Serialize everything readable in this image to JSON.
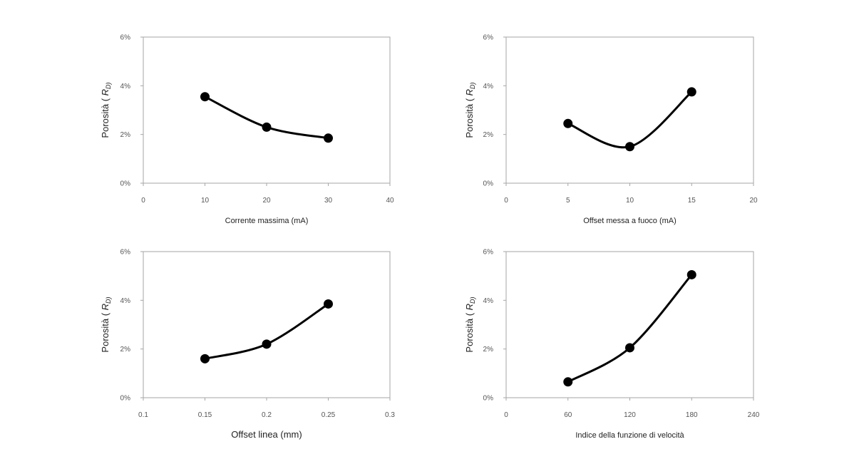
{
  "chart_data": [
    {
      "type": "line",
      "x": [
        10,
        20,
        30
      ],
      "series": [
        {
          "values": [
            3.55,
            2.3,
            1.85
          ]
        }
      ],
      "xlabel": "Corrente massima (mA)",
      "ylabel": "Porosità (",
      "ylabel_var": "R",
      "ylabel_sub": "D)",
      "xlim": [
        0,
        40
      ],
      "ylim": [
        0,
        6
      ],
      "xticks": [
        "0",
        "10",
        "20",
        "30",
        "40"
      ],
      "yticks": [
        "0%",
        "2%",
        "4%",
        "6%"
      ],
      "grid": false,
      "smooth": true
    },
    {
      "type": "line",
      "x": [
        5,
        10,
        15
      ],
      "series": [
        {
          "values": [
            2.45,
            1.5,
            3.75
          ]
        }
      ],
      "xlabel": "Offset messa a fuoco (mA)",
      "ylabel": "Porosità (",
      "ylabel_var": "R",
      "ylabel_sub": "D)",
      "xlim": [
        0,
        20
      ],
      "ylim": [
        0,
        6
      ],
      "xticks": [
        "0",
        "5",
        "10",
        "15",
        "20"
      ],
      "yticks": [
        "0%",
        "2%",
        "4%",
        "6%"
      ],
      "grid": false,
      "smooth": true
    },
    {
      "type": "line",
      "x": [
        0.15,
        0.2,
        0.25
      ],
      "series": [
        {
          "values": [
            1.6,
            2.2,
            3.85
          ]
        }
      ],
      "xlabel": "Offset linea (mm)",
      "ylabel": "Porosità (",
      "ylabel_var": "R",
      "ylabel_sub": "D)",
      "xlim": [
        0.1,
        0.3
      ],
      "ylim": [
        0,
        6
      ],
      "xticks": [
        "0.1",
        "0.15",
        "0.2",
        "0.25",
        "0.3"
      ],
      "yticks": [
        "0%",
        "2%",
        "4%",
        "6%"
      ],
      "grid": false,
      "smooth": true
    },
    {
      "type": "line",
      "x": [
        60,
        120,
        180
      ],
      "series": [
        {
          "values": [
            0.65,
            2.05,
            5.05
          ]
        }
      ],
      "xlabel": "Indice della funzione di velocità",
      "ylabel": "Porosità (",
      "ylabel_var": "R",
      "ylabel_sub": "D)",
      "xlim": [
        0,
        240
      ],
      "ylim": [
        0,
        6
      ],
      "xticks": [
        "0",
        "60",
        "120",
        "180",
        "240"
      ],
      "yticks": [
        "0%",
        "2%",
        "4%",
        "6%"
      ],
      "grid": false,
      "smooth": true
    }
  ]
}
